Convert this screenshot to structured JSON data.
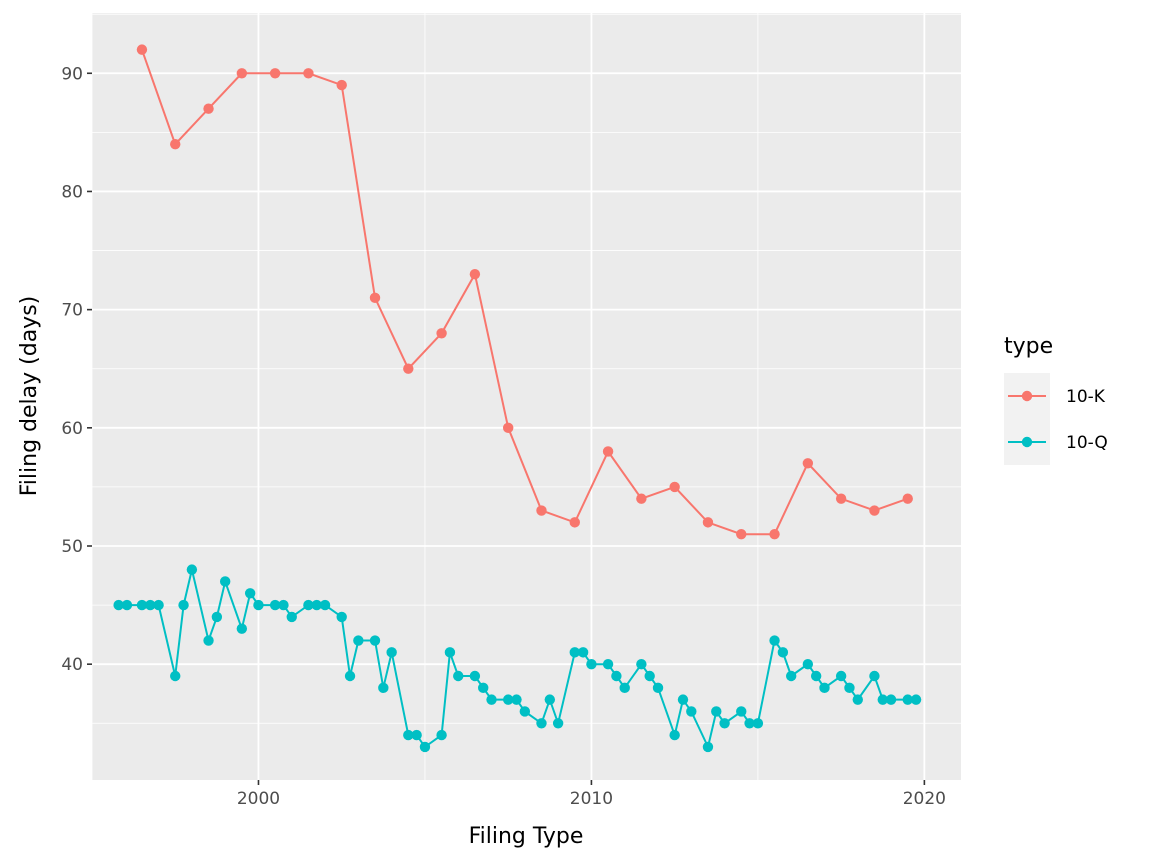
{
  "chart_data": {
    "type": "line",
    "title": "",
    "xlabel": "Filing Type",
    "ylabel": "Filing delay (days)",
    "xlim": [
      1995,
      2021.1
    ],
    "ylim": [
      30.2,
      95.1
    ],
    "x_ticks": [
      2000,
      2010,
      2020
    ],
    "y_ticks": [
      40,
      50,
      60,
      70,
      80,
      90
    ],
    "grid": true,
    "legend": {
      "title": "type",
      "position": "right"
    },
    "series": [
      {
        "name": "10-K",
        "color": "#F8766D",
        "x": [
          1996.5,
          1997.5,
          1998.5,
          1999.5,
          2000.5,
          2001.5,
          2002.5,
          2003.5,
          2004.5,
          2005.5,
          2006.5,
          2007.5,
          2008.5,
          2009.5,
          2010.5,
          2011.5,
          2012.5,
          2013.5,
          2014.5,
          2015.5,
          2016.5,
          2017.5,
          2018.5,
          2019.5
        ],
        "y": [
          92,
          84,
          87,
          90,
          90,
          90,
          89,
          71,
          65,
          68,
          73,
          60,
          53,
          52,
          58,
          54,
          55,
          52,
          51,
          51,
          57,
          54,
          53,
          54
        ]
      },
      {
        "name": "10-Q",
        "color": "#00BFC4",
        "x": [
          1995.8,
          1996.05,
          1996.5,
          1996.75,
          1997.0,
          1997.5,
          1997.75,
          1998.0,
          1998.5,
          1998.75,
          1999.0,
          1999.5,
          1999.75,
          2000.0,
          2000.5,
          2000.75,
          2001.0,
          2001.5,
          2001.75,
          2002.0,
          2002.5,
          2002.75,
          2003.0,
          2003.5,
          2003.75,
          2004.0,
          2004.5,
          2004.75,
          2005.0,
          2005.5,
          2005.75,
          2006.0,
          2006.5,
          2006.75,
          2007.0,
          2007.5,
          2007.75,
          2008.0,
          2008.5,
          2008.75,
          2009.0,
          2009.5,
          2009.75,
          2010.0,
          2010.5,
          2010.75,
          2011.0,
          2011.5,
          2011.75,
          2012.0,
          2012.5,
          2012.75,
          2013.0,
          2013.5,
          2013.75,
          2014.0,
          2014.5,
          2014.75,
          2015.0,
          2015.5,
          2015.75,
          2016.0,
          2016.5,
          2016.75,
          2017.0,
          2017.5,
          2017.75,
          2018.0,
          2018.5,
          2018.75,
          2019.0,
          2019.5,
          2019.75
        ],
        "y": [
          45,
          45,
          45,
          45,
          45,
          39,
          45,
          48,
          42,
          44,
          47,
          43,
          46,
          45,
          45,
          45,
          44,
          45,
          45,
          45,
          44,
          39,
          42,
          42,
          38,
          41,
          34,
          34,
          33,
          34,
          41,
          39,
          39,
          38,
          37,
          37,
          37,
          36,
          35,
          37,
          35,
          41,
          41,
          40,
          40,
          39,
          38,
          40,
          39,
          38,
          34,
          37,
          36,
          33,
          36,
          35,
          36,
          35,
          35,
          42,
          41,
          39,
          40,
          39,
          38,
          39,
          38,
          37,
          39,
          37,
          37,
          37,
          37
        ]
      }
    ]
  }
}
